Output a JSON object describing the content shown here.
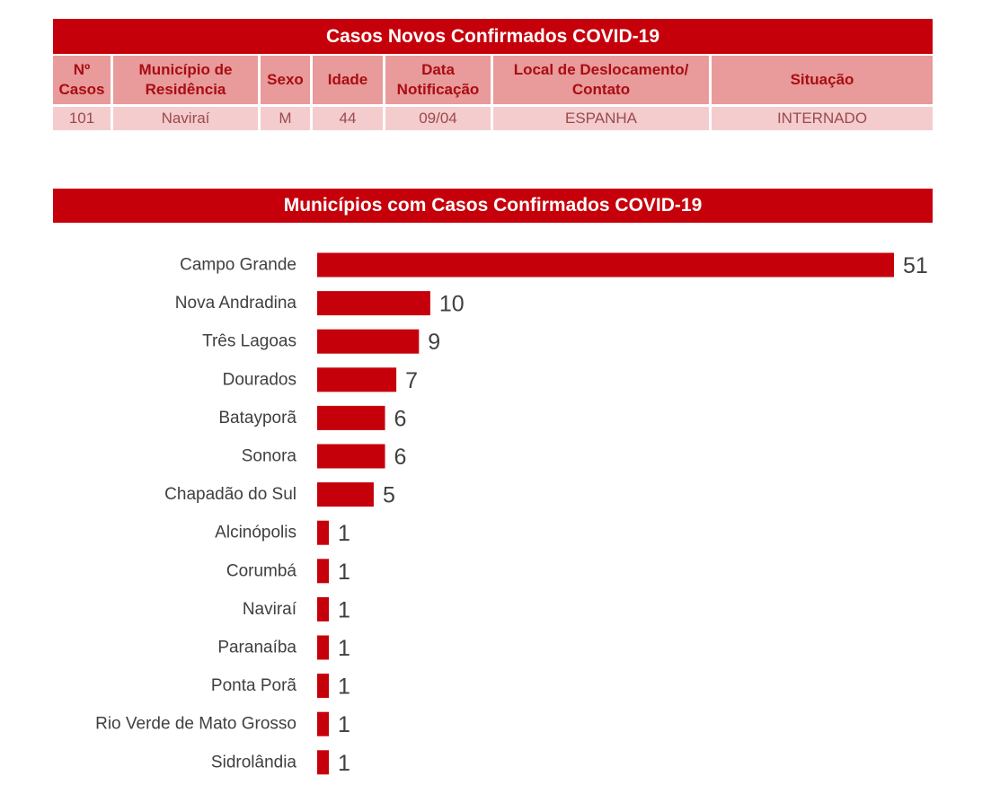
{
  "table": {
    "title": "Casos Novos Confirmados COVID-19",
    "headers": [
      "Nº Casos",
      "Município de Residência",
      "Sexo",
      "Idade",
      "Data Notificação",
      "Local de Deslocamento/ Contato",
      "Situação"
    ],
    "rows": [
      [
        "101",
        "Naviraí",
        "M",
        "44",
        "09/04",
        "ESPANHA",
        "INTERNADO"
      ]
    ]
  },
  "chart_data": {
    "type": "bar",
    "orientation": "horizontal",
    "title": "Municípios com Casos Confirmados COVID-19",
    "categories": [
      "Campo Grande",
      "Nova Andradina",
      "Três Lagoas",
      "Dourados",
      "Batayporã",
      "Sonora",
      "Chapadão do Sul",
      "Alcinópolis",
      "Corumbá",
      "Naviraí",
      "Paranaíba",
      "Ponta Porã",
      "Rio Verde de Mato Grosso",
      "Sidrolândia"
    ],
    "values": [
      51,
      10,
      9,
      7,
      6,
      6,
      5,
      1,
      1,
      1,
      1,
      1,
      1,
      1
    ],
    "xlim": [
      0,
      51
    ],
    "grid": false,
    "data_labels": true,
    "color": "#c6000b"
  }
}
